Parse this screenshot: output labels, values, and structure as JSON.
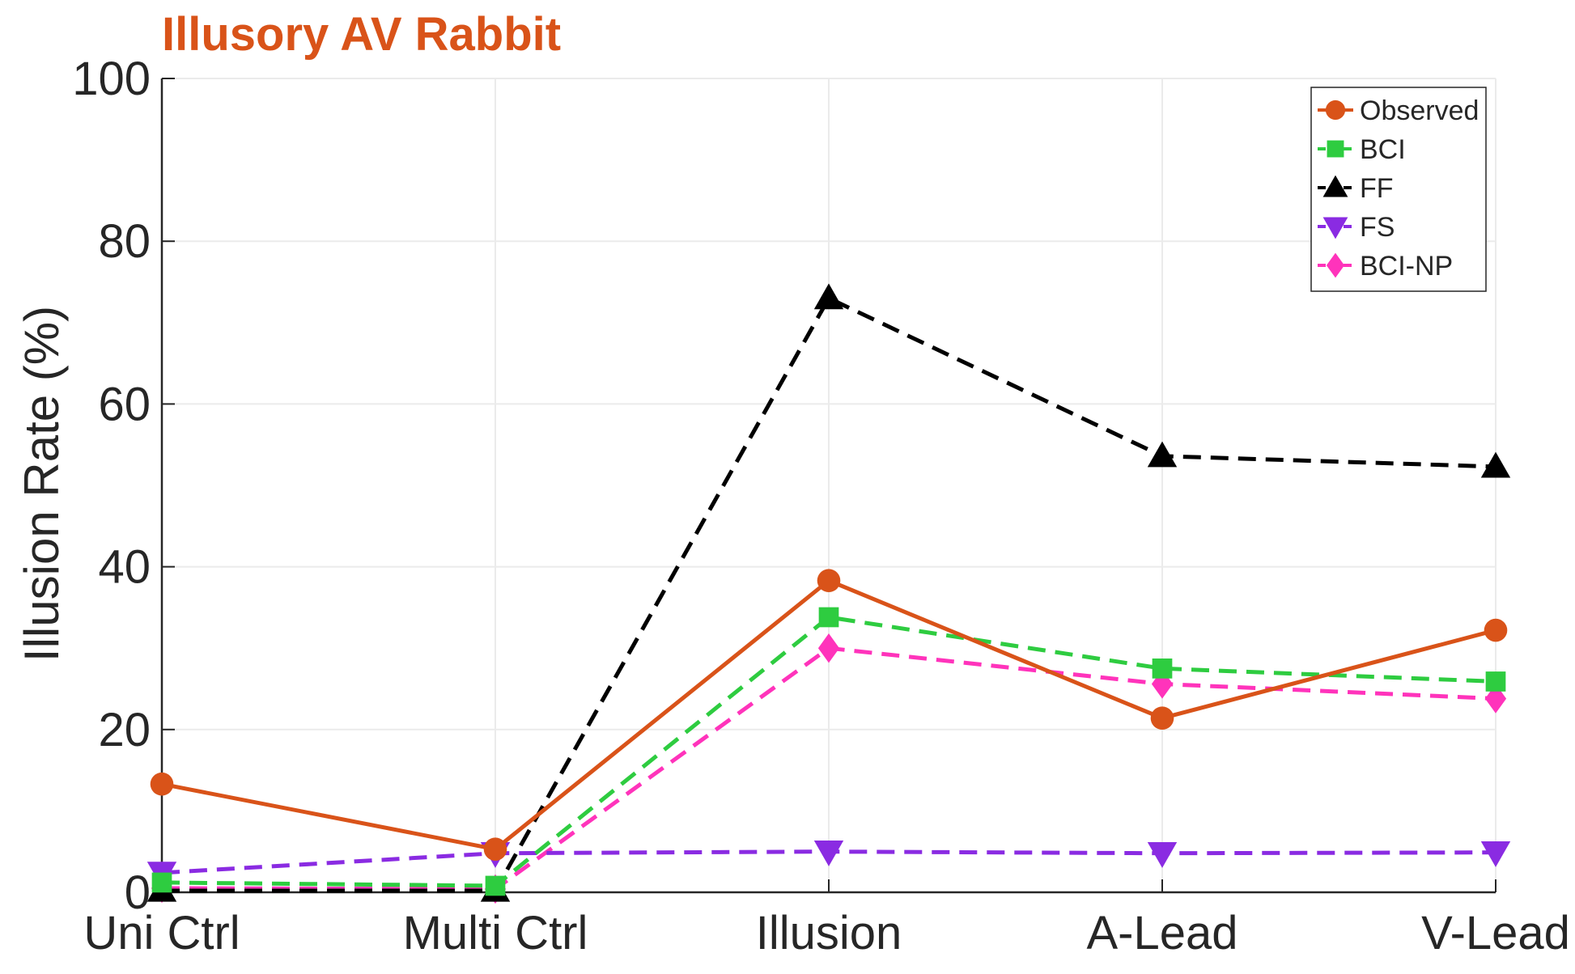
{
  "chart_data": {
    "type": "line",
    "title": "Illusory AV Rabbit",
    "xlabel": "",
    "ylabel": "Illusion Rate (%)",
    "categories": [
      "Uni Ctrl",
      "Multi Ctrl",
      "Illusion",
      "A-Lead",
      "V-Lead"
    ],
    "ylim": [
      0,
      100
    ],
    "yticks": [
      0,
      20,
      40,
      60,
      80,
      100
    ],
    "grid": true,
    "legend_position": "top-right",
    "series": [
      {
        "name": "Observed",
        "values": [
          13.3,
          5.3,
          38.3,
          21.4,
          32.2
        ],
        "color": "#D95319",
        "line": "solid",
        "marker": "circle"
      },
      {
        "name": "BCI",
        "values": [
          1.2,
          0.8,
          33.8,
          27.5,
          25.9
        ],
        "color": "#2ECC40",
        "line": "dashed",
        "marker": "square"
      },
      {
        "name": "FF",
        "values": [
          0.2,
          0.2,
          73.0,
          53.6,
          52.3
        ],
        "color": "#000000",
        "line": "dashed",
        "marker": "triangle-up"
      },
      {
        "name": "FS",
        "values": [
          2.4,
          4.8,
          5.0,
          4.8,
          4.9
        ],
        "color": "#8A2BE2",
        "line": "dashed",
        "marker": "triangle-down"
      },
      {
        "name": "BCI-NP",
        "values": [
          0.5,
          0.4,
          30.0,
          25.6,
          23.8
        ],
        "color": "#FF33BB",
        "line": "dashed",
        "marker": "diamond"
      }
    ]
  }
}
